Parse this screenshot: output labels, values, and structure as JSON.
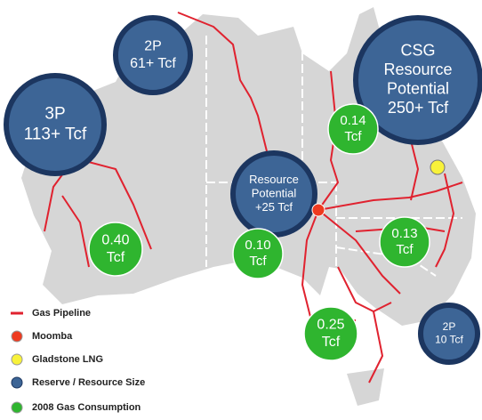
{
  "reserve_bubbles": [
    {
      "lines": [
        "3P",
        "113+ Tcf"
      ]
    },
    {
      "lines": [
        "2P",
        "61+ Tcf"
      ]
    },
    {
      "lines": [
        "CSG",
        "Resource",
        "Potential",
        "250+ Tcf"
      ]
    },
    {
      "lines": [
        "Resource",
        "Potential",
        "+25 Tcf"
      ]
    },
    {
      "lines": [
        "2P",
        "10 Tcf"
      ]
    }
  ],
  "consumption_bubbles": [
    {
      "lines": [
        "0.14",
        "Tcf"
      ]
    },
    {
      "lines": [
        "0.40",
        "Tcf"
      ]
    },
    {
      "lines": [
        "0.10",
        "Tcf"
      ]
    },
    {
      "lines": [
        "0.13",
        "Tcf"
      ]
    },
    {
      "lines": [
        "0.25",
        "Tcf"
      ]
    }
  ],
  "legend": [
    "Gas Pipeline",
    "Moomba",
    "Gladstone LNG",
    "Reserve / Resource Size",
    "2008 Gas Consumption"
  ]
}
